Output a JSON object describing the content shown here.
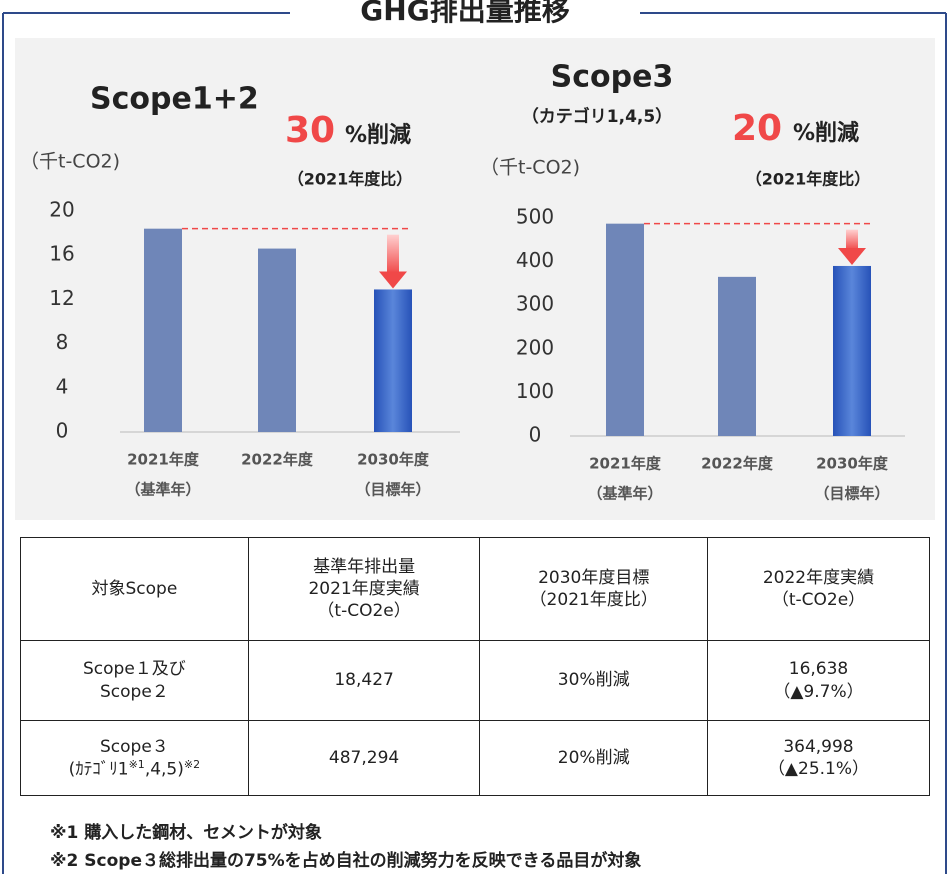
{
  "header": {
    "title": "GHG排出量推移"
  },
  "chart_data": [
    {
      "type": "bar",
      "title": "Scope1+2",
      "y_label": "（千t-CO2)",
      "reduction_value": "30",
      "reduction_unit": "%削減",
      "reduction_basis": "（2021年度比）",
      "reduction_color": "#f04848",
      "categories": [
        "2021年度",
        "2022年度",
        "2030年度"
      ],
      "category_notes": [
        "（基準年）",
        null,
        "（目標年）"
      ],
      "values": [
        18.4,
        16.6,
        12.9
      ],
      "colors": [
        "#6f86b8",
        "#6f86b8",
        "#2f5fc4"
      ],
      "ylim": [
        0,
        20
      ],
      "yticks": [
        0,
        4,
        8,
        12,
        16,
        20
      ]
    },
    {
      "type": "bar",
      "title": "Scope3",
      "subtitle": "（カテゴリ1,4,5）",
      "y_label": "（千t-CO2)",
      "reduction_value": "20",
      "reduction_unit": "%削減",
      "reduction_basis": "（2021年度比）",
      "reduction_color": "#f04848",
      "categories": [
        "2021年度",
        "2022年度",
        "2030年度"
      ],
      "category_notes": [
        "（基準年）",
        null,
        "（目標年）"
      ],
      "values": [
        487,
        365,
        390
      ],
      "colors": [
        "#6f86b8",
        "#6f86b8",
        "#2f5fc4"
      ],
      "ylim": [
        0,
        500
      ],
      "yticks": [
        0,
        100,
        200,
        300,
        400,
        500
      ]
    }
  ],
  "table": {
    "rows": [
      [
        "対象Scope",
        "基準年排出量\n2021年度実績\n（t-CO2e）",
        "2030年度目標\n（2021年度比）",
        "2022年度実績\n（t-CO2e）"
      ],
      [
        "Scope１及び\nScope２",
        "18,427",
        "30%削減",
        "16,638\n（▲9.7%）"
      ],
      [
        [
          "Scope３\n(ｶﾃｺﾞﾘ1",
          "※1",
          ",4,5)",
          "※2"
        ],
        "487,294",
        "20%削減",
        "364,998\n（▲25.1%）"
      ]
    ]
  },
  "notes": [
    "※1  購入した鋼材、セメントが対象",
    "※2  Scope３総排出量の75%を占め自社の削減努力を反映できる品目が対象"
  ]
}
